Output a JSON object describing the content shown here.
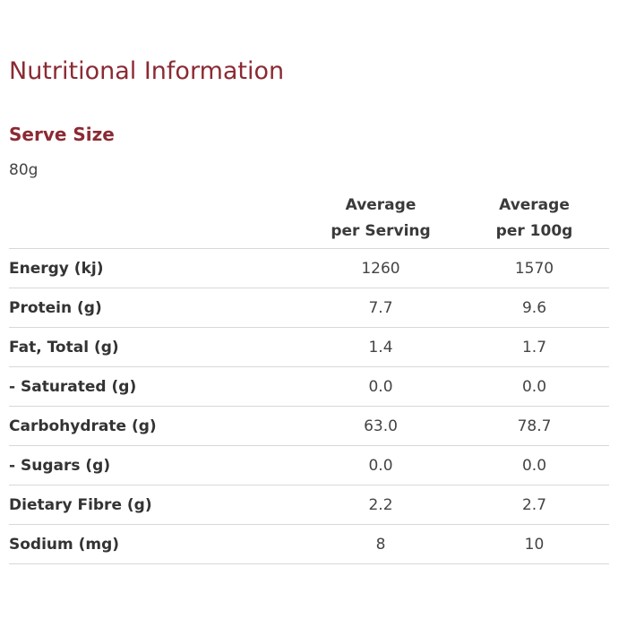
{
  "title": "Nutritional Information",
  "serve": {
    "heading": "Serve Size",
    "value": "80g"
  },
  "table": {
    "headers": [
      {
        "line1": "Average",
        "line2": "per Serving"
      },
      {
        "line1": "Average",
        "line2": "per 100g"
      }
    ],
    "rows": [
      {
        "label": "Energy (kj)",
        "per_serving": "1260",
        "per_100g": "1570"
      },
      {
        "label": "Protein (g)",
        "per_serving": "7.7",
        "per_100g": "9.6"
      },
      {
        "label": "Fat, Total (g)",
        "per_serving": "1.4",
        "per_100g": "1.7"
      },
      {
        "label": "- Saturated (g)",
        "per_serving": "0.0",
        "per_100g": "0.0"
      },
      {
        "label": "Carbohydrate (g)",
        "per_serving": "63.0",
        "per_100g": "78.7"
      },
      {
        "label": "- Sugars (g)",
        "per_serving": "0.0",
        "per_100g": "0.0"
      },
      {
        "label": "Dietary Fibre (g)",
        "per_serving": "2.2",
        "per_100g": "2.7"
      },
      {
        "label": "Sodium (mg)",
        "per_serving": "8",
        "per_100g": "10"
      }
    ]
  },
  "colors": {
    "accent": "#8b2a33",
    "text": "#333333",
    "rule": "#d8d8d8"
  }
}
